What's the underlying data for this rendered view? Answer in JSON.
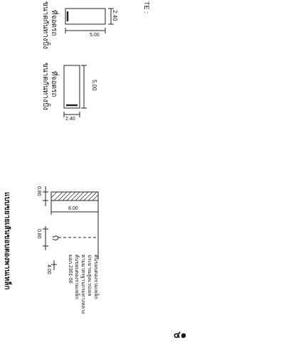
{
  "note_label": "TE :",
  "parking_normal": {
    "label": "ที่จอดรถ",
    "sublabel": "ขนาดกันทางปั้ง",
    "dim_width": "2.40",
    "dim_length": "5.00"
  },
  "parking_parallel": {
    "label": "ที่จอดรถ",
    "sublabel": "ขนาดกันทางปั้ง",
    "dim_length": "5.00",
    "dim_width": "2.40"
  },
  "section": {
    "title": "แบบขยายเส้นขอบตองพานเหล็ก",
    "dim_top": "0.80",
    "dim_span": "8.00",
    "dim_offset": "0.80",
    "dim_depth": "4.00",
    "notes": [
      "ต้นขอบตองรวมเหล็ก",
      "ประมาณสูงแวปเยล",
      "ตามมาตรฐานกรมทางหลวง",
      "ต้นขอบตองรวมเหล็ก",
      "มอก.2301-56"
    ]
  },
  "page_number": "๔๑"
}
